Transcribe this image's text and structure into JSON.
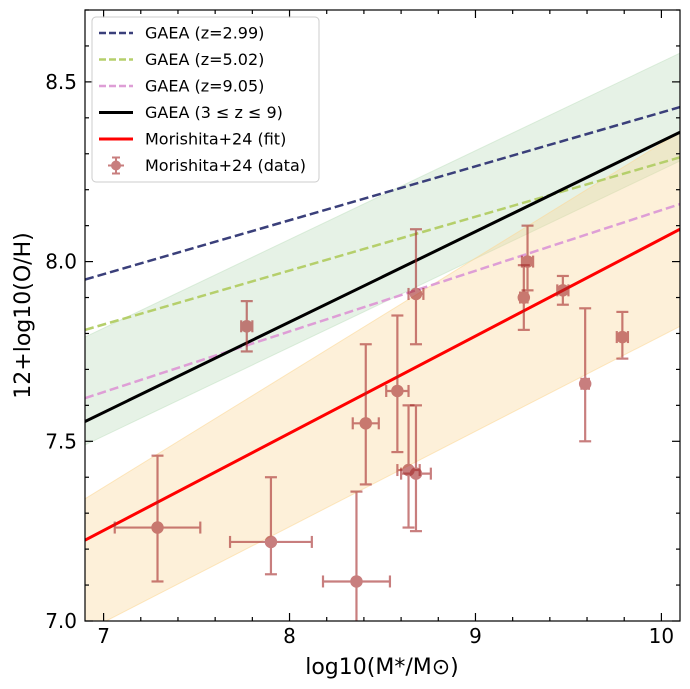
{
  "chart_data": {
    "type": "scatter",
    "title": "",
    "xlabel": "log10(M*/M⊙)",
    "ylabel": "12+log10(O/H)",
    "xlim": [
      6.9,
      10.1
    ],
    "ylim": [
      7.0,
      8.7
    ],
    "x_ticks": [
      {
        "value": 7,
        "label": "7"
      },
      {
        "value": 8,
        "label": "8"
      },
      {
        "value": 9,
        "label": "9"
      },
      {
        "value": 10,
        "label": "10"
      }
    ],
    "y_ticks": [
      {
        "value": 7.0,
        "label": "7.0"
      },
      {
        "value": 7.5,
        "label": "7.5"
      },
      {
        "value": 8.0,
        "label": "8.0"
      },
      {
        "value": 8.5,
        "label": "8.5"
      }
    ],
    "bands": [
      {
        "name": "GAEA scatter",
        "color": "#c7e2c7",
        "opacity": 0.45,
        "x": [
          6.9,
          10.1
        ],
        "lower": [
          7.49,
          8.28
        ],
        "upper": [
          7.79,
          8.58
        ]
      },
      {
        "name": "Morishita+24 scatter",
        "color": "#fbd89a",
        "opacity": 0.38,
        "x": [
          6.9,
          10.1
        ],
        "lower": [
          6.97,
          7.82
        ],
        "upper": [
          7.34,
          8.36
        ]
      }
    ],
    "series": [
      {
        "name": "GAEA (z=2.99)",
        "style": "dashed",
        "color": "#3a3f7a",
        "x": [
          6.9,
          10.1
        ],
        "y": [
          7.95,
          8.43
        ]
      },
      {
        "name": "GAEA (z=5.02)",
        "style": "dashed",
        "color": "#b5cf6b",
        "x": [
          6.9,
          10.1
        ],
        "y": [
          7.81,
          8.29
        ]
      },
      {
        "name": "GAEA (z=9.05)",
        "style": "dashed",
        "color": "#de9ed6",
        "x": [
          6.9,
          10.1
        ],
        "y": [
          7.62,
          8.16
        ]
      },
      {
        "name": "GAEA (3 ≤ z ≤ 9)",
        "style": "solid",
        "color": "#000000",
        "x": [
          6.9,
          10.1
        ],
        "y": [
          7.555,
          8.36
        ]
      },
      {
        "name": "Morishita+24 (fit)",
        "style": "solid",
        "color": "#ff0000",
        "x": [
          6.9,
          10.1
        ],
        "y": [
          7.225,
          8.09
        ]
      }
    ],
    "points": {
      "name": "Morishita+24 (data)",
      "color": "#a52a2a",
      "data": [
        {
          "x": 7.29,
          "y": 7.26,
          "xerr": 0.23,
          "yerr_lo": 0.15,
          "yerr_hi": 0.2
        },
        {
          "x": 7.77,
          "y": 7.82,
          "xerr": 0.03,
          "yerr_lo": 0.07,
          "yerr_hi": 0.07
        },
        {
          "x": 7.9,
          "y": 7.22,
          "xerr": 0.22,
          "yerr_lo": 0.09,
          "yerr_hi": 0.18
        },
        {
          "x": 8.36,
          "y": 7.11,
          "xerr": 0.18,
          "yerr_lo": 0.25,
          "yerr_hi": 0.25
        },
        {
          "x": 8.41,
          "y": 7.55,
          "xerr": 0.07,
          "yerr_lo": 0.17,
          "yerr_hi": 0.22
        },
        {
          "x": 8.58,
          "y": 7.64,
          "xerr": 0.06,
          "yerr_lo": 0.17,
          "yerr_hi": 0.21
        },
        {
          "x": 8.64,
          "y": 7.42,
          "xerr": 0.06,
          "yerr_lo": 0.16,
          "yerr_hi": 0.18
        },
        {
          "x": 8.68,
          "y": 7.41,
          "xerr": 0.08,
          "yerr_lo": 0.16,
          "yerr_hi": 0.19
        },
        {
          "x": 8.68,
          "y": 7.91,
          "xerr": 0.04,
          "yerr_lo": 0.14,
          "yerr_hi": 0.18
        },
        {
          "x": 9.26,
          "y": 7.9,
          "xerr": 0.02,
          "yerr_lo": 0.09,
          "yerr_hi": 0.09
        },
        {
          "x": 9.28,
          "y": 8.0,
          "xerr": 0.03,
          "yerr_lo": 0.08,
          "yerr_hi": 0.1
        },
        {
          "x": 9.47,
          "y": 7.92,
          "xerr": 0.03,
          "yerr_lo": 0.04,
          "yerr_hi": 0.04
        },
        {
          "x": 9.59,
          "y": 7.66,
          "xerr": 0.02,
          "yerr_lo": 0.16,
          "yerr_hi": 0.21
        },
        {
          "x": 9.79,
          "y": 7.79,
          "xerr": 0.03,
          "yerr_lo": 0.06,
          "yerr_hi": 0.07
        }
      ]
    },
    "legend": {
      "position": "top-left",
      "items": [
        {
          "label": "GAEA (z=2.99)",
          "kind": "dashed",
          "color": "#3a3f7a"
        },
        {
          "label": "GAEA (z=5.02)",
          "kind": "dashed",
          "color": "#b5cf6b"
        },
        {
          "label": "GAEA (z=9.05)",
          "kind": "dashed",
          "color": "#de9ed6"
        },
        {
          "label": "GAEA (3 ≤ z ≤ 9)",
          "kind": "solid",
          "color": "#000000"
        },
        {
          "label": "Morishita+24 (fit)",
          "kind": "solid",
          "color": "#ff0000"
        },
        {
          "label": "Morishita+24 (data)",
          "kind": "errorbar",
          "color": "#a52a2a"
        }
      ]
    }
  }
}
